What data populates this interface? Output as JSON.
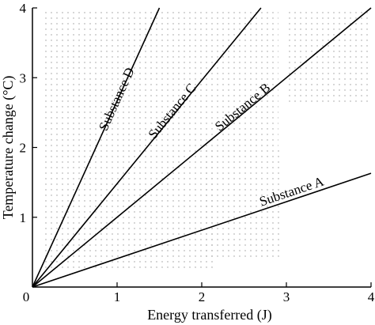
{
  "chart_data": {
    "type": "line",
    "xlabel": "Energy transferred (J)",
    "ylabel": "Temperature change (°C)",
    "xlim": [
      0,
      4
    ],
    "ylim": [
      0,
      4
    ],
    "x_ticks": [
      "0",
      "1",
      "2",
      "3",
      "4"
    ],
    "y_ticks": [
      "1",
      "2",
      "3",
      "4"
    ],
    "origin_label": "0",
    "grid": false,
    "background": "stippled",
    "series": [
      {
        "name": "Substance A",
        "x": [
          0,
          4
        ],
        "y": [
          0,
          1.63
        ]
      },
      {
        "name": "Substance B",
        "x": [
          0,
          4
        ],
        "y": [
          0,
          4
        ]
      },
      {
        "name": "Substance C",
        "x": [
          0,
          2.7
        ],
        "y": [
          0,
          4
        ]
      },
      {
        "name": "Substance D",
        "x": [
          0,
          1.5
        ],
        "y": [
          0,
          4
        ]
      }
    ]
  },
  "colors": {
    "line": "#000000",
    "stipple": "#9a9a9a"
  }
}
